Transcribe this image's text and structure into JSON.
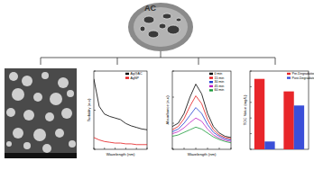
{
  "top_image": {
    "label": "AC"
  },
  "chart_data": [
    {
      "type": "line",
      "x_label": "Wavelength (nm)",
      "y_label": "Turbidity (a.u)",
      "x": [
        300,
        350,
        400,
        450,
        500,
        550,
        600,
        650,
        700,
        750,
        800
      ],
      "series": [
        {
          "name": "Ag@AC",
          "color": "#000000",
          "values": [
            0.9,
            0.55,
            0.45,
            0.42,
            0.4,
            0.38,
            0.33,
            0.3,
            0.28,
            0.26,
            0.25
          ]
        },
        {
          "name": "AgNP",
          "color": "#e31a1c",
          "values": [
            0.15,
            0.12,
            0.1,
            0.09,
            0.08,
            0.08,
            0.07,
            0.07,
            0.06,
            0.06,
            0.06
          ]
        }
      ],
      "xlim": [
        300,
        800
      ],
      "xticks": [
        300,
        400,
        500,
        600,
        700,
        800
      ],
      "ylim": [
        0,
        1
      ],
      "yticks": [
        0,
        0.5,
        1
      ],
      "tick_labels": false,
      "legend": "upper right"
    },
    {
      "type": "line",
      "x_label": "Wavelength (nm)",
      "y_label": "Absorbance (a.u)",
      "x": [
        250,
        275,
        300,
        325,
        350,
        375,
        400,
        425,
        450,
        475,
        500
      ],
      "series": [
        {
          "name": "0 min",
          "color": "#000000",
          "values": [
            0.35,
            0.4,
            0.55,
            0.8,
            1.0,
            0.85,
            0.55,
            0.35,
            0.25,
            0.2,
            0.18
          ]
        },
        {
          "name": "15 min",
          "color": "#e31a1c",
          "values": [
            0.3,
            0.35,
            0.47,
            0.66,
            0.82,
            0.7,
            0.46,
            0.3,
            0.22,
            0.18,
            0.16
          ]
        },
        {
          "name": "30 min",
          "color": "#1f3fd0",
          "values": [
            0.27,
            0.31,
            0.4,
            0.52,
            0.64,
            0.55,
            0.38,
            0.26,
            0.2,
            0.16,
            0.14
          ]
        },
        {
          "name": "45 min",
          "color": "#c020c0",
          "values": [
            0.24,
            0.27,
            0.33,
            0.41,
            0.48,
            0.43,
            0.31,
            0.22,
            0.17,
            0.14,
            0.12
          ]
        },
        {
          "name": "60 min",
          "color": "#1a9a3a",
          "values": [
            0.2,
            0.22,
            0.26,
            0.3,
            0.34,
            0.31,
            0.25,
            0.19,
            0.15,
            0.12,
            0.1
          ]
        }
      ],
      "xlim": [
        250,
        500
      ],
      "xticks": [
        250,
        300,
        350,
        400,
        450,
        500
      ],
      "ylim": [
        0,
        1.2
      ],
      "yticks": [
        0,
        0.4,
        0.8,
        1.2
      ],
      "tick_labels": false,
      "legend": "upper right"
    },
    {
      "type": "bar",
      "y_label": "TOC Value (mg/L)",
      "categories": [
        null,
        null
      ],
      "series": [
        {
          "name": "Pre-Degradation",
          "color": "#e8262a",
          "values": [
            45,
            37
          ]
        },
        {
          "name": "Post-Degradation",
          "color": "#3b4fd8",
          "values": [
            5,
            28
          ]
        }
      ],
      "ylim": [
        0,
        50
      ],
      "yticks": [
        0,
        10,
        20,
        30,
        40,
        50
      ],
      "tick_labels": false,
      "legend": "upper right"
    }
  ]
}
